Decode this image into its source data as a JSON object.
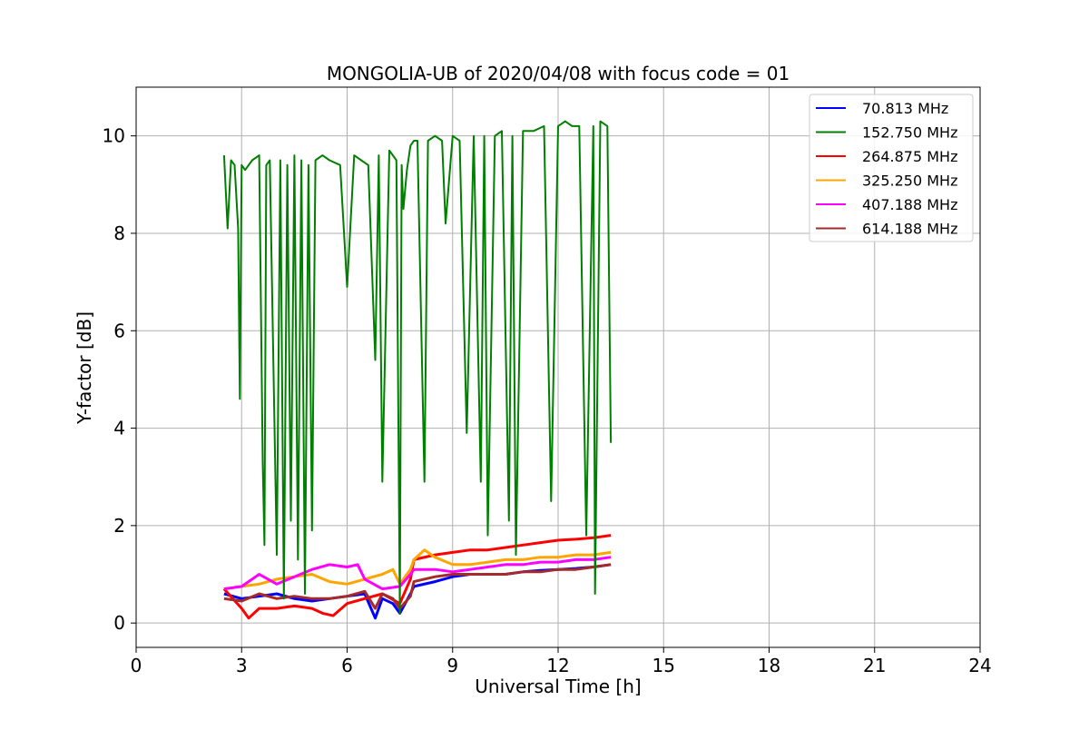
{
  "chart_data": {
    "type": "line",
    "title": "MONGOLIA-UB of 2020/04/08 with focus code = 01",
    "xlabel": "Universal Time [h]",
    "ylabel": "Y-factor [dB]",
    "xlim": [
      0,
      24
    ],
    "ylim": [
      -0.5,
      11
    ],
    "xticks": [
      0,
      3,
      6,
      9,
      12,
      15,
      18,
      21,
      24
    ],
    "yticks": [
      0,
      2,
      4,
      6,
      8,
      10
    ],
    "grid": true,
    "legend_position": "top-right",
    "series": [
      {
        "name": " 70.813 MHz",
        "color": "#0000ff",
        "x": [
          2.5,
          3.0,
          3.5,
          4.0,
          4.5,
          5.0,
          5.5,
          6.0,
          6.5,
          6.8,
          7.0,
          7.3,
          7.5,
          7.8,
          7.9,
          8.5,
          9.0,
          9.5,
          10.0,
          10.5,
          11.0,
          11.5,
          12.0,
          12.5,
          13.0,
          13.5
        ],
        "y": [
          0.6,
          0.5,
          0.55,
          0.6,
          0.5,
          0.45,
          0.5,
          0.55,
          0.6,
          0.1,
          0.5,
          0.4,
          0.2,
          0.6,
          0.75,
          0.85,
          0.95,
          1.0,
          1.0,
          1.0,
          1.05,
          1.08,
          1.1,
          1.12,
          1.15,
          1.2
        ]
      },
      {
        "name": "152.750 MHz",
        "color": "#008000",
        "x": [
          2.5,
          2.6,
          2.7,
          2.8,
          2.9,
          2.95,
          3.0,
          3.1,
          3.3,
          3.5,
          3.6,
          3.65,
          3.7,
          3.8,
          4.0,
          4.1,
          4.2,
          4.3,
          4.4,
          4.5,
          4.6,
          4.7,
          4.8,
          4.9,
          5.0,
          5.1,
          5.3,
          5.5,
          5.8,
          6.0,
          6.2,
          6.4,
          6.6,
          6.8,
          6.9,
          7.0,
          7.2,
          7.4,
          7.5,
          7.55,
          7.6,
          7.7,
          7.8,
          7.9,
          8.0,
          8.2,
          8.3,
          8.5,
          8.7,
          8.8,
          9.0,
          9.2,
          9.4,
          9.6,
          9.8,
          9.9,
          10.0,
          10.2,
          10.4,
          10.6,
          10.7,
          10.8,
          11.0,
          11.3,
          11.6,
          11.8,
          12.0,
          12.2,
          12.4,
          12.6,
          12.8,
          13.0,
          13.05,
          13.2,
          13.4,
          13.5
        ],
        "y": [
          9.6,
          8.1,
          9.5,
          9.4,
          8.1,
          4.6,
          9.4,
          9.3,
          9.5,
          9.6,
          3.3,
          1.6,
          9.4,
          9.5,
          1.4,
          9.5,
          0.5,
          9.4,
          2.1,
          9.6,
          1.3,
          9.5,
          0.6,
          9.4,
          1.9,
          9.5,
          9.6,
          9.5,
          9.4,
          6.9,
          9.6,
          9.5,
          9.4,
          5.4,
          9.6,
          2.9,
          9.7,
          9.5,
          0.2,
          9.4,
          8.5,
          9.3,
          9.8,
          9.9,
          9.9,
          2.9,
          9.9,
          10.0,
          9.9,
          8.2,
          10.0,
          9.9,
          3.9,
          10.0,
          2.9,
          10.0,
          1.8,
          10.0,
          10.1,
          2.1,
          10.0,
          1.4,
          10.1,
          10.1,
          10.2,
          2.5,
          10.2,
          10.3,
          10.2,
          10.2,
          1.8,
          10.2,
          0.6,
          10.3,
          10.2,
          3.7
        ]
      },
      {
        "name": "264.875 MHz",
        "color": "#ff0000",
        "x": [
          2.5,
          3.0,
          3.2,
          3.5,
          4.0,
          4.5,
          5.0,
          5.3,
          5.6,
          6.0,
          6.5,
          7.0,
          7.5,
          7.8,
          7.9,
          8.5,
          9.0,
          9.5,
          10.0,
          10.5,
          11.0,
          11.5,
          12.0,
          12.5,
          13.0,
          13.5
        ],
        "y": [
          0.7,
          0.3,
          0.1,
          0.3,
          0.3,
          0.35,
          0.3,
          0.2,
          0.15,
          0.4,
          0.5,
          0.6,
          0.4,
          0.9,
          1.3,
          1.4,
          1.45,
          1.5,
          1.5,
          1.55,
          1.6,
          1.65,
          1.7,
          1.72,
          1.75,
          1.8
        ]
      },
      {
        "name": "325.250 MHz",
        "color": "#ffa500",
        "x": [
          2.5,
          3.0,
          3.5,
          4.0,
          4.5,
          5.0,
          5.5,
          6.0,
          6.5,
          7.0,
          7.3,
          7.5,
          7.8,
          7.9,
          8.2,
          8.5,
          9.0,
          9.5,
          10.0,
          10.5,
          11.0,
          11.5,
          12.0,
          12.5,
          13.0,
          13.5
        ],
        "y": [
          0.7,
          0.75,
          0.8,
          0.9,
          0.95,
          1.0,
          0.85,
          0.8,
          0.9,
          1.0,
          1.1,
          0.8,
          1.1,
          1.3,
          1.5,
          1.35,
          1.2,
          1.2,
          1.25,
          1.3,
          1.3,
          1.35,
          1.35,
          1.4,
          1.4,
          1.45
        ]
      },
      {
        "name": "407.188 MHz",
        "color": "#ff00ff",
        "x": [
          2.5,
          3.0,
          3.5,
          4.0,
          4.5,
          5.0,
          5.5,
          6.0,
          6.3,
          6.5,
          7.0,
          7.5,
          7.8,
          7.9,
          8.5,
          9.0,
          9.5,
          10.0,
          10.5,
          11.0,
          11.5,
          12.0,
          12.5,
          13.0,
          13.5
        ],
        "y": [
          0.7,
          0.75,
          1.0,
          0.8,
          0.95,
          1.1,
          1.2,
          1.15,
          1.2,
          0.9,
          0.7,
          0.75,
          1.0,
          1.1,
          1.1,
          1.05,
          1.1,
          1.15,
          1.2,
          1.2,
          1.25,
          1.25,
          1.3,
          1.3,
          1.35
        ]
      },
      {
        "name": "614.188 MHz",
        "color": "#a52a2a",
        "x": [
          2.5,
          3.0,
          3.5,
          4.0,
          4.5,
          5.0,
          5.5,
          6.0,
          6.5,
          6.8,
          7.0,
          7.3,
          7.5,
          7.8,
          7.9,
          8.5,
          9.0,
          9.5,
          10.0,
          10.5,
          11.0,
          11.5,
          12.0,
          12.5,
          13.0,
          13.5
        ],
        "y": [
          0.5,
          0.45,
          0.6,
          0.5,
          0.55,
          0.5,
          0.5,
          0.55,
          0.65,
          0.3,
          0.6,
          0.5,
          0.3,
          0.55,
          0.85,
          0.95,
          1.0,
          1.0,
          1.0,
          1.0,
          1.05,
          1.05,
          1.1,
          1.1,
          1.15,
          1.2
        ]
      }
    ]
  }
}
